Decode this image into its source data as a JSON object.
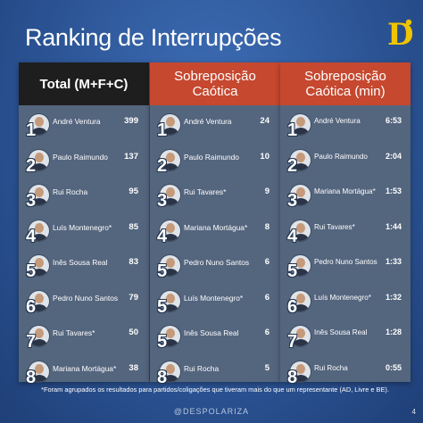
{
  "title": "Ranking de Interrupções",
  "logo_letter": "D",
  "columns": [
    {
      "header": "Total (M+F+C)",
      "rows": [
        {
          "rank": "1",
          "name": "André Ventura",
          "value": "399"
        },
        {
          "rank": "2",
          "name": "Paulo Raimundo",
          "value": "137"
        },
        {
          "rank": "3",
          "name": "Rui Rocha",
          "value": "95"
        },
        {
          "rank": "4",
          "name": "Luís Montenegro*",
          "value": "85"
        },
        {
          "rank": "5",
          "name": "Inês Sousa Real",
          "value": "83"
        },
        {
          "rank": "6",
          "name": "Pedro Nuno Santos",
          "value": "79"
        },
        {
          "rank": "7",
          "name": "Rui Tavares*",
          "value": "50"
        },
        {
          "rank": "8",
          "name": "Mariana Mortágua*",
          "value": "38"
        }
      ]
    },
    {
      "header": "Sobreposição Caótica",
      "rows": [
        {
          "rank": "1",
          "name": "André Ventura",
          "value": "24"
        },
        {
          "rank": "2",
          "name": "Paulo Raimundo",
          "value": "10"
        },
        {
          "rank": "3",
          "name": "Rui Tavares*",
          "value": "9"
        },
        {
          "rank": "4",
          "name": "Mariana Mortágua*",
          "value": "8"
        },
        {
          "rank": "5",
          "name": "Pedro Nuno Santos",
          "value": "6"
        },
        {
          "rank": "5",
          "name": "Luís Montenegro*",
          "value": "6"
        },
        {
          "rank": "5",
          "name": "Inês Sousa Real",
          "value": "6"
        },
        {
          "rank": "8",
          "name": "Rui Rocha",
          "value": "5"
        }
      ]
    },
    {
      "header": "Sobreposição Caótica (min)",
      "rows": [
        {
          "rank": "1",
          "name": "André Ventura",
          "value": "6:53"
        },
        {
          "rank": "2",
          "name": "Paulo Raimundo",
          "value": "2:04"
        },
        {
          "rank": "3",
          "name": "Mariana Mortágua*",
          "value": "1:53"
        },
        {
          "rank": "4",
          "name": "Rui Tavares*",
          "value": "1:44"
        },
        {
          "rank": "5",
          "name": "Pedro Nuno Santos",
          "value": "1:33"
        },
        {
          "rank": "6",
          "name": "Luís Montenegro*",
          "value": "1:32"
        },
        {
          "rank": "7",
          "name": "Inês Sousa Real",
          "value": "1:28"
        },
        {
          "rank": "8",
          "name": "Rui Rocha",
          "value": "0:55"
        }
      ]
    }
  ],
  "footnote": "*Foram agrupados os resultados para partidos/coligações que tiveram mais do que um representante (AD, Livre e BE).",
  "handle": "@DESPOLARIZA",
  "page_number": "4",
  "colors": {
    "background": "#2c5596",
    "panel": "#54657e",
    "header_total": "#1e1e1e",
    "header_sobreposicao": "#c5482f",
    "logo": "#f0c400"
  }
}
